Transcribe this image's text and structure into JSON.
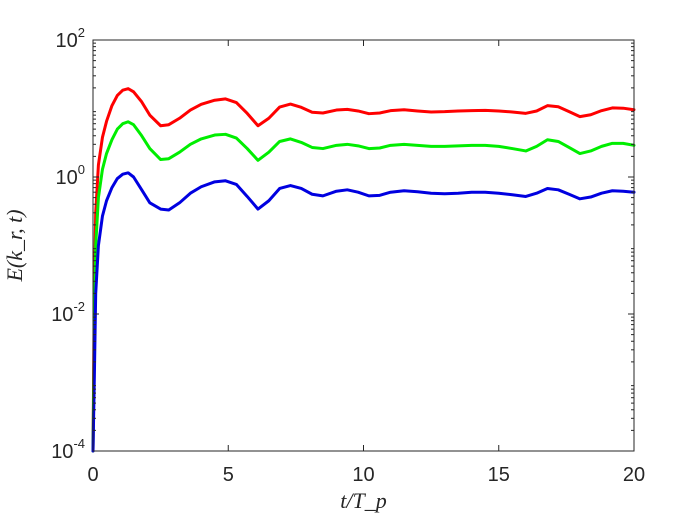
{
  "chart_data": {
    "type": "line",
    "title": "",
    "xlabel": "t/T_p",
    "ylabel": "E(k_r, t)",
    "xlim": [
      0,
      20
    ],
    "ylim": [
      0.0001,
      100
    ],
    "yscale": "log",
    "grid": false,
    "box": true,
    "x_ticks": [
      0,
      5,
      10,
      15,
      20
    ],
    "x_tick_labels": [
      "0",
      "5",
      "10",
      "15",
      "20"
    ],
    "y_ticks": [
      0.0001,
      0.01,
      1,
      100
    ],
    "y_tick_labels": [
      {
        "base": "10",
        "exp": "-4"
      },
      {
        "base": "10",
        "exp": "-2"
      },
      {
        "base": "10",
        "exp": "0"
      },
      {
        "base": "10",
        "exp": "2"
      }
    ],
    "colors": {
      "red": "#ff0000",
      "green": "#00ee00",
      "blue": "#0000e0",
      "axis": "#262626"
    },
    "series": [
      {
        "color": "#ff0000",
        "x": [
          0.0,
          0.05,
          0.1,
          0.2,
          0.35,
          0.5,
          0.7,
          0.9,
          1.1,
          1.3,
          1.5,
          1.8,
          2.1,
          2.5,
          2.8,
          3.2,
          3.6,
          4.0,
          4.5,
          4.9,
          5.3,
          5.7,
          6.1,
          6.5,
          6.9,
          7.3,
          7.7,
          8.1,
          8.5,
          9.0,
          9.4,
          9.8,
          10.2,
          10.6,
          11.0,
          11.5,
          12.0,
          12.5,
          13.0,
          13.5,
          14.0,
          14.5,
          15.0,
          15.5,
          16.0,
          16.4,
          16.8,
          17.2,
          17.6,
          18.0,
          18.4,
          18.8,
          19.2,
          19.6,
          20.0
        ],
        "y": [
          0.0001,
          0.02,
          0.3,
          1.5,
          3.8,
          6.5,
          11.0,
          15.5,
          18.5,
          19.5,
          17.5,
          12.5,
          8.0,
          5.6,
          5.8,
          7.2,
          9.5,
          11.5,
          13.2,
          13.8,
          12.2,
          8.5,
          5.6,
          7.2,
          10.5,
          11.6,
          10.4,
          8.8,
          8.6,
          9.5,
          9.7,
          9.2,
          8.4,
          8.6,
          9.3,
          9.6,
          9.2,
          8.9,
          9.0,
          9.2,
          9.3,
          9.4,
          9.2,
          8.9,
          8.5,
          9.2,
          11.0,
          10.6,
          9.0,
          7.6,
          8.1,
          9.3,
          10.2,
          10.1,
          9.6
        ]
      },
      {
        "color": "#00ee00",
        "x": [
          0.0,
          0.05,
          0.1,
          0.2,
          0.35,
          0.5,
          0.7,
          0.9,
          1.1,
          1.3,
          1.5,
          1.8,
          2.1,
          2.5,
          2.8,
          3.2,
          3.6,
          4.0,
          4.5,
          4.9,
          5.3,
          5.7,
          6.1,
          6.5,
          6.9,
          7.3,
          7.7,
          8.1,
          8.5,
          9.0,
          9.4,
          9.8,
          10.2,
          10.6,
          11.0,
          11.5,
          12.0,
          12.5,
          13.0,
          13.5,
          14.0,
          14.5,
          15.0,
          15.5,
          16.0,
          16.4,
          16.8,
          17.2,
          17.6,
          18.0,
          18.4,
          18.8,
          19.2,
          19.6,
          20.0
        ],
        "y": [
          0.0001,
          0.006,
          0.1,
          0.5,
          1.3,
          2.2,
          3.5,
          5.0,
          6.0,
          6.4,
          5.8,
          4.0,
          2.6,
          1.8,
          1.85,
          2.3,
          3.0,
          3.6,
          4.1,
          4.2,
          3.7,
          2.6,
          1.75,
          2.3,
          3.3,
          3.6,
          3.2,
          2.7,
          2.6,
          2.9,
          3.0,
          2.85,
          2.6,
          2.65,
          2.9,
          3.0,
          2.9,
          2.8,
          2.8,
          2.85,
          2.9,
          2.9,
          2.8,
          2.6,
          2.4,
          2.8,
          3.5,
          3.3,
          2.7,
          2.2,
          2.4,
          2.8,
          3.1,
          3.1,
          2.9
        ]
      },
      {
        "color": "#0000e0",
        "x": [
          0.0,
          0.05,
          0.1,
          0.2,
          0.35,
          0.5,
          0.7,
          0.9,
          1.1,
          1.3,
          1.5,
          1.8,
          2.1,
          2.5,
          2.8,
          3.2,
          3.6,
          4.0,
          4.5,
          4.9,
          5.3,
          5.7,
          6.1,
          6.5,
          6.9,
          7.3,
          7.7,
          8.1,
          8.5,
          9.0,
          9.4,
          9.8,
          10.2,
          10.6,
          11.0,
          11.5,
          12.0,
          12.5,
          13.0,
          13.5,
          14.0,
          14.5,
          15.0,
          15.5,
          16.0,
          16.4,
          16.8,
          17.2,
          17.6,
          18.0,
          18.4,
          18.8,
          19.2,
          19.6,
          20.0
        ],
        "y": [
          0.0001,
          0.0012,
          0.02,
          0.1,
          0.27,
          0.45,
          0.7,
          0.95,
          1.1,
          1.15,
          1.0,
          0.65,
          0.42,
          0.34,
          0.33,
          0.42,
          0.58,
          0.72,
          0.85,
          0.88,
          0.78,
          0.52,
          0.34,
          0.45,
          0.68,
          0.75,
          0.68,
          0.56,
          0.53,
          0.62,
          0.65,
          0.6,
          0.53,
          0.54,
          0.6,
          0.63,
          0.61,
          0.58,
          0.57,
          0.58,
          0.6,
          0.6,
          0.58,
          0.55,
          0.52,
          0.58,
          0.68,
          0.65,
          0.56,
          0.48,
          0.51,
          0.58,
          0.63,
          0.62,
          0.6
        ]
      }
    ]
  }
}
